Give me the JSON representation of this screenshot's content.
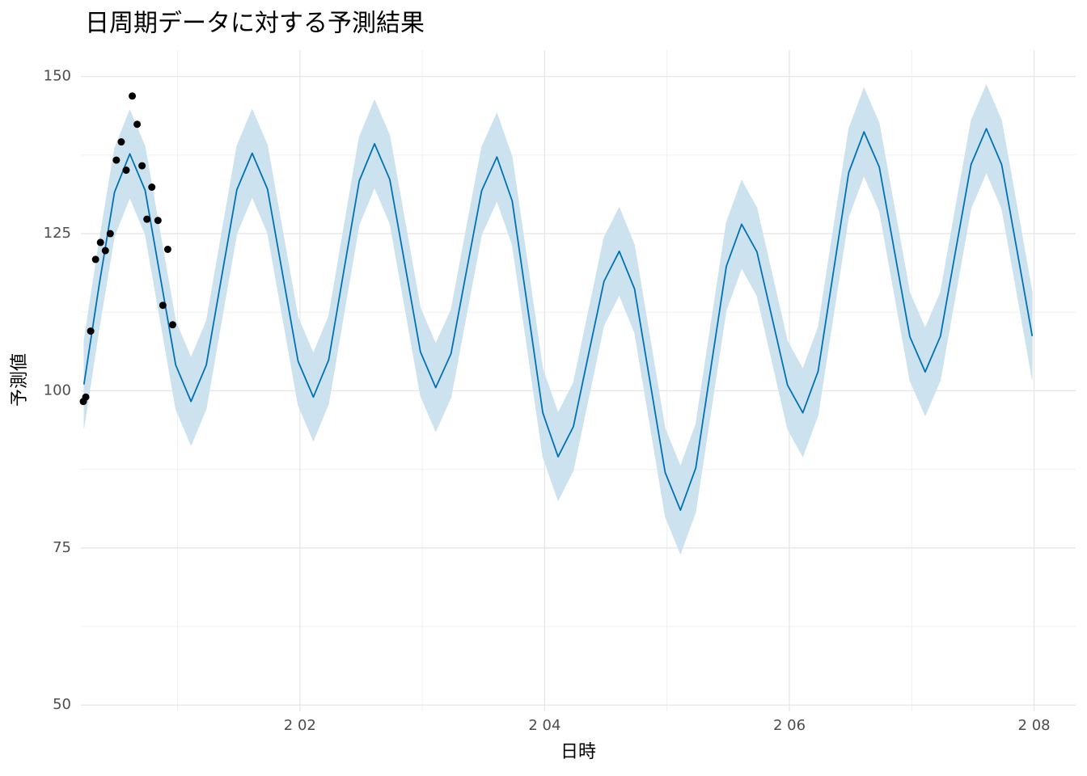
{
  "chart_data": {
    "type": "line",
    "title": "日周期データに対する予測結果",
    "x_label": "日時",
    "y_label": "予測値",
    "xlim": [
      0.21,
      8.34
    ],
    "ylim": [
      49,
      154.2
    ],
    "xticks": [
      {
        "value": 2,
        "label": "2 02"
      },
      {
        "value": 4,
        "label": "2 04"
      },
      {
        "value": 6,
        "label": "2 06"
      },
      {
        "value": 8,
        "label": "2 08"
      }
    ],
    "yticks": [
      50,
      75,
      100,
      125,
      150
    ],
    "x_minor_grid": [
      1,
      3,
      5,
      7
    ],
    "y_minor_grid": [
      62.5,
      87.5,
      112.5,
      137.5
    ],
    "grid": true,
    "forecast": {
      "color": "#0072b2",
      "band_color": "#cce2ef",
      "x": [
        0.235,
        0.36,
        0.485,
        0.61,
        0.735,
        0.86,
        0.985,
        1.11,
        1.235,
        1.36,
        1.485,
        1.61,
        1.735,
        1.86,
        1.985,
        2.11,
        2.235,
        2.36,
        2.485,
        2.61,
        2.735,
        2.86,
        2.985,
        3.11,
        3.235,
        3.36,
        3.485,
        3.61,
        3.735,
        3.86,
        3.985,
        4.11,
        4.235,
        4.36,
        4.485,
        4.61,
        4.735,
        4.86,
        4.985,
        5.11,
        5.235,
        5.36,
        5.485,
        5.61,
        5.735,
        5.86,
        5.985,
        6.11,
        6.235,
        6.36,
        6.485,
        6.61,
        6.735,
        6.86,
        6.985,
        7.11,
        7.235,
        7.36,
        7.485,
        7.61,
        7.735,
        7.86,
        7.985
      ],
      "values": [
        101.0,
        116.9,
        131.6,
        137.7,
        131.9,
        118.0,
        104.1,
        98.3,
        104.1,
        118.1,
        132.0,
        137.8,
        132.1,
        118.4,
        104.7,
        99.0,
        104.9,
        119.2,
        133.4,
        139.3,
        133.6,
        119.9,
        106.2,
        100.5,
        105.9,
        118.9,
        131.8,
        137.2,
        130.2,
        113.4,
        96.5,
        89.5,
        94.3,
        105.9,
        117.4,
        122.2,
        116.2,
        101.6,
        87.0,
        81.0,
        87.7,
        103.8,
        119.8,
        126.5,
        122.1,
        111.5,
        100.9,
        96.5,
        103.1,
        118.9,
        134.7,
        141.2,
        135.6,
        122.1,
        108.6,
        103.0,
        108.7,
        122.4,
        136.0,
        141.7,
        136.0,
        122.4,
        108.7
      ],
      "upper": [
        108.0,
        123.9,
        138.6,
        144.7,
        138.9,
        125.0,
        111.1,
        105.3,
        111.1,
        125.1,
        139.0,
        144.8,
        139.1,
        125.4,
        111.7,
        106.0,
        111.9,
        126.2,
        140.4,
        146.3,
        140.6,
        126.9,
        113.2,
        107.5,
        112.9,
        125.9,
        138.8,
        144.2,
        137.2,
        120.4,
        103.5,
        96.5,
        101.3,
        112.9,
        124.4,
        129.2,
        123.2,
        108.6,
        94.0,
        88.0,
        94.7,
        110.8,
        126.8,
        133.5,
        129.1,
        118.5,
        107.9,
        103.5,
        110.1,
        125.9,
        141.7,
        148.2,
        142.6,
        129.1,
        115.6,
        110.0,
        115.7,
        129.4,
        143.0,
        148.7,
        143.0,
        129.4,
        115.7
      ],
      "lower": [
        94.0,
        109.9,
        124.6,
        130.7,
        124.9,
        111.0,
        97.1,
        91.3,
        97.1,
        111.1,
        125.0,
        130.8,
        125.1,
        111.4,
        97.7,
        92.0,
        97.9,
        112.2,
        126.4,
        132.3,
        126.6,
        112.9,
        99.2,
        93.5,
        98.9,
        111.9,
        124.8,
        130.2,
        123.2,
        106.4,
        89.5,
        82.5,
        87.3,
        98.9,
        110.4,
        115.2,
        109.2,
        94.6,
        80.0,
        74.0,
        80.7,
        96.8,
        112.8,
        119.5,
        115.1,
        104.5,
        93.9,
        89.5,
        96.1,
        111.9,
        127.7,
        134.2,
        128.6,
        115.1,
        101.6,
        96.0,
        101.7,
        115.4,
        129.0,
        134.7,
        129.0,
        115.4,
        101.7
      ]
    },
    "observed": {
      "color": "#000000",
      "x": [
        0.23,
        0.25,
        0.29,
        0.33,
        0.37,
        0.41,
        0.45,
        0.5,
        0.54,
        0.58,
        0.63,
        0.67,
        0.71,
        0.75,
        0.79,
        0.84,
        0.88,
        0.92,
        0.96
      ],
      "values": [
        98.3,
        99.0,
        109.5,
        120.9,
        123.6,
        122.3,
        125.0,
        136.7,
        139.6,
        135.1,
        146.9,
        142.4,
        135.8,
        127.3,
        132.4,
        127.1,
        113.6,
        122.5,
        110.5
      ]
    }
  }
}
